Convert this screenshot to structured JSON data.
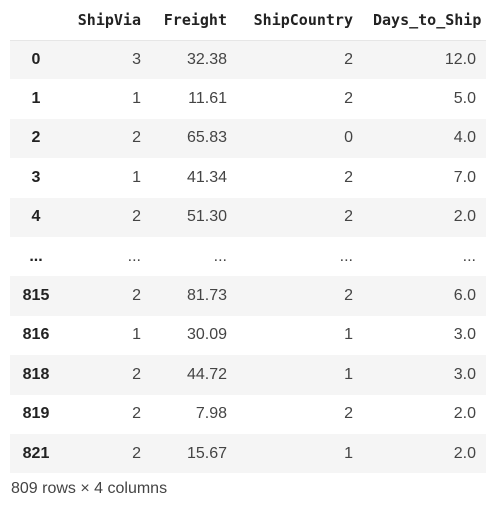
{
  "dataframe": {
    "columns": [
      "",
      "ShipVia",
      "Freight",
      "ShipCountry",
      "Days_to_Ship"
    ],
    "rows": [
      {
        "index": "0",
        "cells": [
          "3",
          "32.38",
          "2",
          "12.0"
        ]
      },
      {
        "index": "1",
        "cells": [
          "1",
          "11.61",
          "2",
          "5.0"
        ]
      },
      {
        "index": "2",
        "cells": [
          "2",
          "65.83",
          "0",
          "4.0"
        ]
      },
      {
        "index": "3",
        "cells": [
          "1",
          "41.34",
          "2",
          "7.0"
        ]
      },
      {
        "index": "4",
        "cells": [
          "2",
          "51.30",
          "2",
          "2.0"
        ]
      },
      {
        "index": "...",
        "cells": [
          "...",
          "...",
          "...",
          "..."
        ]
      },
      {
        "index": "815",
        "cells": [
          "2",
          "81.73",
          "2",
          "6.0"
        ]
      },
      {
        "index": "816",
        "cells": [
          "1",
          "30.09",
          "1",
          "3.0"
        ]
      },
      {
        "index": "818",
        "cells": [
          "2",
          "44.72",
          "1",
          "3.0"
        ]
      },
      {
        "index": "819",
        "cells": [
          "2",
          "7.98",
          "2",
          "2.0"
        ]
      },
      {
        "index": "821",
        "cells": [
          "2",
          "15.67",
          "1",
          "2.0"
        ]
      }
    ],
    "shape_text": "809 rows × 4 columns"
  }
}
